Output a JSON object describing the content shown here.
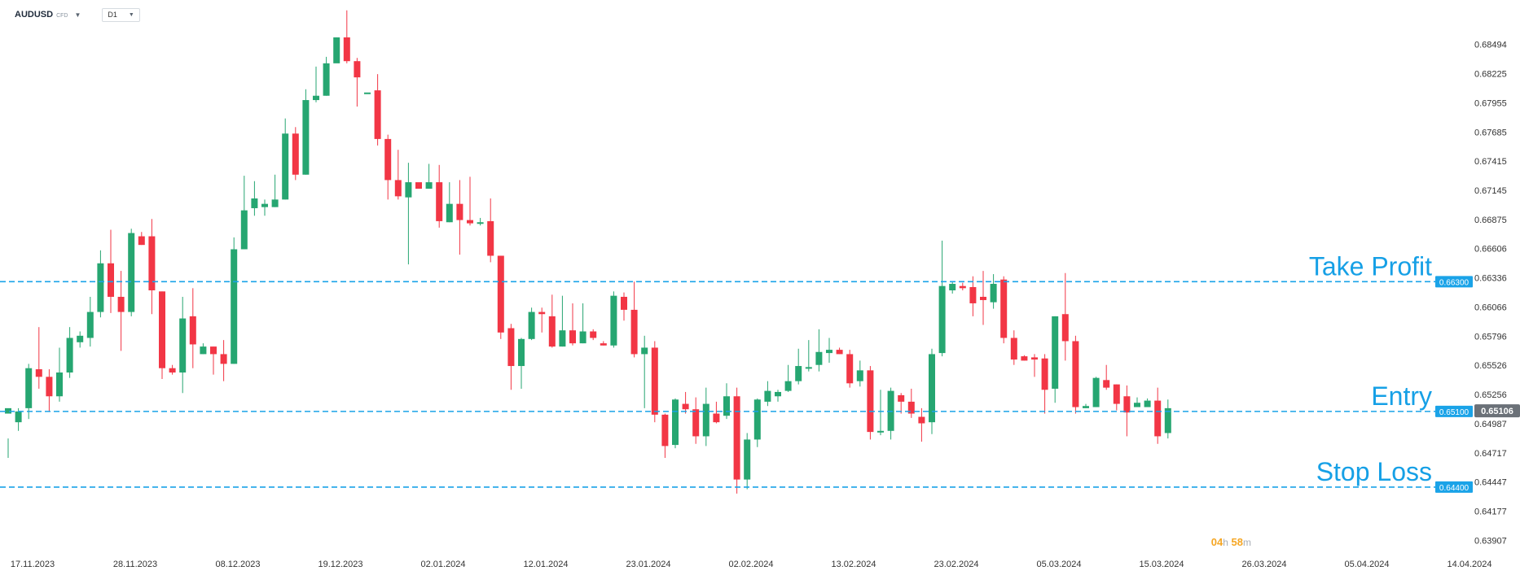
{
  "header": {
    "symbol": "AUDUSD",
    "instrument_type": "CFD",
    "timeframe": "D1"
  },
  "countdown": {
    "hours": "04",
    "hours_unit": "h",
    "minutes": "58",
    "minutes_unit": "m"
  },
  "chart_data": {
    "type": "candlestick",
    "ylim": [
      0.6379,
      0.6868
    ],
    "y_ticks": [
      "0.68494",
      "0.68225",
      "0.67955",
      "0.67685",
      "0.67415",
      "0.67145",
      "0.66875",
      "0.66606",
      "0.66336",
      "0.66066",
      "0.65796",
      "0.65526",
      "0.65256",
      "0.64987",
      "0.64717",
      "0.64447",
      "0.64177",
      "0.63907"
    ],
    "x_tick_labels": [
      "17.11.2023",
      "28.11.2023",
      "08.12.2023",
      "19.12.2023",
      "02.01.2024",
      "12.01.2024",
      "23.01.2024",
      "02.02.2024",
      "13.02.2024",
      "23.02.2024",
      "05.03.2024",
      "15.03.2024",
      "26.03.2024",
      "05.04.2024",
      "14.04.2024"
    ],
    "colors": {
      "up": "#26a671",
      "down": "#f23645",
      "level": "#1aa3e8",
      "level_text": "#16a0e6",
      "current_price_bg": "#6b7178"
    },
    "levels": [
      {
        "name": "Take Profit",
        "price": 0.663,
        "price_label": "0.66300"
      },
      {
        "name": "Entry",
        "price": 0.651,
        "price_label": "0.65100"
      },
      {
        "name": "Stop Loss",
        "price": 0.644,
        "price_label": "0.64400"
      }
    ],
    "current_price": {
      "value": 0.65106,
      "label": "0.65106"
    },
    "candles": [
      [
        0.6508,
        0.6513,
        0.6485,
        0.6467
      ],
      [
        0.65,
        0.651,
        0.6513,
        0.6492
      ],
      [
        0.6513,
        0.655,
        0.6554,
        0.6503
      ],
      [
        0.6549,
        0.6542,
        0.6588,
        0.6531
      ],
      [
        0.6542,
        0.6524,
        0.6549,
        0.651
      ],
      [
        0.6524,
        0.6546,
        0.6569,
        0.6519
      ],
      [
        0.6546,
        0.6578,
        0.6588,
        0.6541
      ],
      [
        0.6574,
        0.658,
        0.6584,
        0.6569
      ],
      [
        0.6578,
        0.6602,
        0.6616,
        0.657
      ],
      [
        0.6602,
        0.6647,
        0.6659,
        0.6597
      ],
      [
        0.6647,
        0.6616,
        0.6678,
        0.6601
      ],
      [
        0.6616,
        0.6602,
        0.664,
        0.6566
      ],
      [
        0.6602,
        0.6675,
        0.6679,
        0.6598
      ],
      [
        0.6672,
        0.6664,
        0.6676,
        0.6664
      ],
      [
        0.6672,
        0.6622,
        0.6688,
        0.66
      ],
      [
        0.6621,
        0.655,
        0.6621,
        0.654
      ],
      [
        0.655,
        0.6546,
        0.6553,
        0.6544
      ],
      [
        0.6546,
        0.6596,
        0.6616,
        0.6527
      ],
      [
        0.6598,
        0.6572,
        0.6624,
        0.655
      ],
      [
        0.6563,
        0.657,
        0.6573,
        0.6563
      ],
      [
        0.657,
        0.6563,
        0.657,
        0.6544
      ],
      [
        0.6563,
        0.6554,
        0.6576,
        0.6538
      ],
      [
        0.6554,
        0.666,
        0.6671,
        0.6554
      ],
      [
        0.666,
        0.6696,
        0.6728,
        0.666
      ],
      [
        0.6698,
        0.6707,
        0.6723,
        0.6691
      ],
      [
        0.6699,
        0.6702,
        0.6706,
        0.6691
      ],
      [
        0.6699,
        0.6706,
        0.6729,
        0.6699
      ],
      [
        0.6706,
        0.6767,
        0.6781,
        0.6706
      ],
      [
        0.6767,
        0.6729,
        0.6773,
        0.6724
      ],
      [
        0.6729,
        0.6798,
        0.6808,
        0.6729
      ],
      [
        0.6798,
        0.6802,
        0.6829,
        0.6796
      ],
      [
        0.6802,
        0.6832,
        0.6838,
        0.6802
      ],
      [
        0.6832,
        0.6856,
        0.6856,
        0.6833
      ],
      [
        0.6856,
        0.6834,
        0.6881,
        0.6832
      ],
      [
        0.6834,
        0.6819,
        0.6837,
        0.6792
      ],
      [
        0.6805,
        0.6805,
        0.6805,
        0.6805
      ],
      [
        0.6807,
        0.6762,
        0.6822,
        0.6756
      ],
      [
        0.6762,
        0.6724,
        0.6766,
        0.6706
      ],
      [
        0.6724,
        0.6709,
        0.6752,
        0.6706
      ],
      [
        0.6708,
        0.6722,
        0.674,
        0.6646
      ],
      [
        0.6722,
        0.6716,
        0.672,
        0.6716
      ],
      [
        0.6716,
        0.6722,
        0.6739,
        0.6716
      ],
      [
        0.6722,
        0.6686,
        0.6738,
        0.668
      ],
      [
        0.6685,
        0.6702,
        0.6722,
        0.6685
      ],
      [
        0.6702,
        0.6687,
        0.6724,
        0.6655
      ],
      [
        0.6687,
        0.6684,
        0.6727,
        0.6682
      ],
      [
        0.6685,
        0.6685,
        0.6689,
        0.6682
      ],
      [
        0.6686,
        0.6654,
        0.6707,
        0.6648
      ],
      [
        0.6654,
        0.6583,
        0.6654,
        0.6577
      ],
      [
        0.6587,
        0.6552,
        0.6591,
        0.653
      ],
      [
        0.6552,
        0.6577,
        0.6578,
        0.6531
      ],
      [
        0.6577,
        0.6602,
        0.6606,
        0.6576
      ],
      [
        0.6602,
        0.66,
        0.6606,
        0.6583
      ],
      [
        0.6598,
        0.657,
        0.6618,
        0.6569
      ],
      [
        0.657,
        0.6585,
        0.6617,
        0.657
      ],
      [
        0.6585,
        0.6573,
        0.661,
        0.6571
      ],
      [
        0.6573,
        0.6584,
        0.661,
        0.6573
      ],
      [
        0.6584,
        0.6578,
        0.6586,
        0.6576
      ],
      [
        0.6573,
        0.6571,
        0.6575,
        0.6571
      ],
      [
        0.6571,
        0.6617,
        0.6621,
        0.6569
      ],
      [
        0.6616,
        0.6604,
        0.662,
        0.6594
      ],
      [
        0.6604,
        0.6563,
        0.663,
        0.656
      ],
      [
        0.6563,
        0.6569,
        0.658,
        0.6513
      ],
      [
        0.6569,
        0.6507,
        0.6575,
        0.65
      ],
      [
        0.6507,
        0.6478,
        0.6508,
        0.6467
      ],
      [
        0.6479,
        0.6521,
        0.6522,
        0.6476
      ],
      [
        0.6517,
        0.6512,
        0.6528,
        0.6508
      ],
      [
        0.6512,
        0.6487,
        0.6523,
        0.648
      ],
      [
        0.6487,
        0.6517,
        0.6532,
        0.6478
      ],
      [
        0.6508,
        0.65,
        0.6519,
        0.6499
      ],
      [
        0.6506,
        0.6524,
        0.6536,
        0.6503
      ],
      [
        0.6524,
        0.6447,
        0.6532,
        0.6434
      ],
      [
        0.6447,
        0.6484,
        0.649,
        0.6438
      ],
      [
        0.6484,
        0.6521,
        0.6522,
        0.6477
      ],
      [
        0.6519,
        0.6529,
        0.6538,
        0.6515
      ],
      [
        0.6524,
        0.6528,
        0.653,
        0.6519
      ],
      [
        0.6529,
        0.6538,
        0.6553,
        0.6528
      ],
      [
        0.6538,
        0.6552,
        0.6568,
        0.6535
      ],
      [
        0.6551,
        0.6551,
        0.6576,
        0.6547
      ],
      [
        0.6553,
        0.6565,
        0.6586,
        0.6547
      ],
      [
        0.6564,
        0.6567,
        0.6578,
        0.6555
      ],
      [
        0.6567,
        0.6563,
        0.6569,
        0.6563
      ],
      [
        0.6563,
        0.6536,
        0.6567,
        0.6532
      ],
      [
        0.6538,
        0.6548,
        0.6557,
        0.6533
      ],
      [
        0.6548,
        0.6491,
        0.6552,
        0.6484
      ],
      [
        0.6491,
        0.6492,
        0.653,
        0.6488
      ],
      [
        0.6492,
        0.6529,
        0.6532,
        0.6484
      ],
      [
        0.6525,
        0.6519,
        0.6527,
        0.6508
      ],
      [
        0.6519,
        0.6508,
        0.6531,
        0.6504
      ],
      [
        0.6505,
        0.6499,
        0.6513,
        0.6482
      ],
      [
        0.65,
        0.6563,
        0.6568,
        0.6489
      ],
      [
        0.6564,
        0.6626,
        0.6668,
        0.6561
      ],
      [
        0.6622,
        0.6628,
        0.663,
        0.6619
      ],
      [
        0.6626,
        0.6624,
        0.6629,
        0.6622
      ],
      [
        0.6625,
        0.661,
        0.6635,
        0.6598
      ],
      [
        0.6616,
        0.6613,
        0.664,
        0.659
      ],
      [
        0.6611,
        0.6628,
        0.6637,
        0.6605
      ],
      [
        0.6632,
        0.6578,
        0.6635,
        0.6573
      ],
      [
        0.6578,
        0.6558,
        0.6585,
        0.6553
      ],
      [
        0.6561,
        0.6557,
        0.6562,
        0.6557
      ],
      [
        0.656,
        0.6558,
        0.6563,
        0.6542
      ],
      [
        0.6559,
        0.653,
        0.6563,
        0.6508
      ],
      [
        0.6531,
        0.6598,
        0.6598,
        0.6518
      ],
      [
        0.66,
        0.6575,
        0.6638,
        0.6557
      ],
      [
        0.6575,
        0.6514,
        0.658,
        0.6508
      ],
      [
        0.6513,
        0.6515,
        0.6517,
        0.6513
      ],
      [
        0.6514,
        0.6541,
        0.6542,
        0.6514
      ],
      [
        0.6539,
        0.6532,
        0.6553,
        0.653
      ],
      [
        0.6535,
        0.6517,
        0.6535,
        0.6511
      ],
      [
        0.6524,
        0.6509,
        0.6534,
        0.6487
      ],
      [
        0.6514,
        0.6518,
        0.6523,
        0.6514
      ],
      [
        0.6514,
        0.652,
        0.6522,
        0.652
      ],
      [
        0.652,
        0.6487,
        0.6532,
        0.648
      ],
      [
        0.649,
        0.6513,
        0.6521,
        0.6485
      ]
    ]
  }
}
